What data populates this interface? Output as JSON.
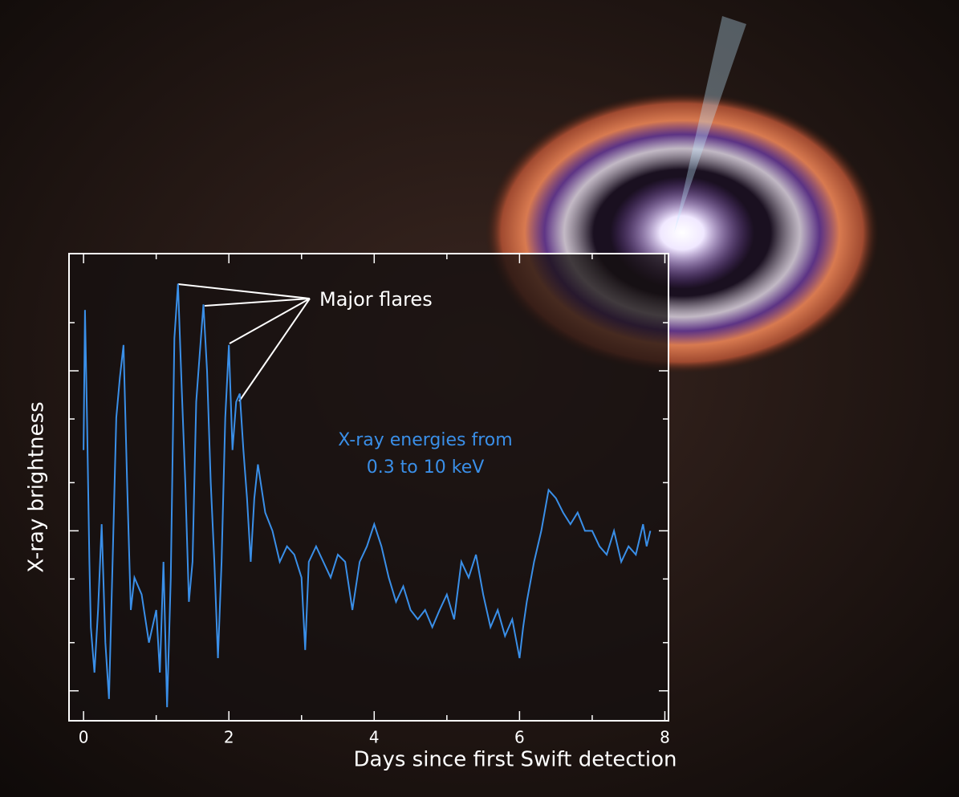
{
  "chart_data": {
    "type": "line",
    "xlabel": "Days since first Swift detection",
    "ylabel": "X-ray brightness",
    "annotations": [
      {
        "text": "Major flares"
      },
      {
        "text": [
          "X-ray energies from",
          "0.3 to 10 keV"
        ],
        "color": "#3a8fe8"
      }
    ],
    "x": [
      0,
      0.02,
      0.05,
      0.08,
      0.1,
      0.15,
      0.2,
      0.25,
      0.3,
      0.35,
      0.4,
      0.45,
      0.5,
      0.55,
      0.6,
      0.65,
      0.7,
      0.8,
      0.9,
      1.0,
      1.05,
      1.1,
      1.15,
      1.2,
      1.25,
      1.3,
      1.35,
      1.4,
      1.45,
      1.5,
      1.55,
      1.6,
      1.65,
      1.7,
      1.75,
      1.8,
      1.85,
      1.9,
      1.95,
      2.0,
      2.05,
      2.1,
      2.15,
      2.2,
      2.25,
      2.3,
      2.35,
      2.4,
      2.5,
      2.6,
      2.7,
      2.8,
      2.9,
      3.0,
      3.05,
      3.1,
      3.2,
      3.3,
      3.4,
      3.5,
      3.6,
      3.7,
      3.8,
      3.9,
      4.0,
      4.1,
      4.2,
      4.3,
      4.4,
      4.5,
      4.6,
      4.7,
      4.8,
      4.9,
      5.0,
      5.1,
      5.2,
      5.3,
      5.4,
      5.5,
      5.6,
      5.7,
      5.8,
      5.9,
      6.0,
      6.05,
      6.1,
      6.2,
      6.3,
      6.4,
      6.5,
      6.6,
      6.7,
      6.8,
      6.9,
      7.0,
      7.1,
      7.2,
      7.3,
      7.4,
      7.5,
      7.6,
      7.7,
      7.75,
      7.8
    ],
    "series": [
      {
        "color": "#3a8fe8",
        "values": [
          32,
          240,
          45,
          6.4,
          2.5,
          1.3,
          3.2,
          11,
          2.0,
          0.89,
          6.4,
          51,
          91,
          145,
          20,
          3.2,
          5.1,
          4.0,
          2.0,
          3.2,
          1.3,
          6.4,
          0.79,
          5.1,
          160,
          350,
          81,
          20,
          3.6,
          6.4,
          64,
          130,
          260,
          100,
          20,
          6.4,
          1.6,
          6.4,
          51,
          145,
          32,
          64,
          72,
          32,
          16,
          6.4,
          16,
          26,
          13,
          10,
          6.4,
          8.0,
          7.1,
          5.1,
          1.8,
          6.4,
          8.0,
          6.4,
          5.1,
          7.1,
          6.4,
          3.2,
          6.4,
          8.0,
          11,
          8.0,
          5.1,
          3.6,
          4.5,
          3.2,
          2.8,
          3.2,
          2.5,
          3.2,
          4.0,
          2.8,
          6.4,
          5.1,
          7.1,
          4.0,
          2.5,
          3.2,
          2.2,
          2.8,
          1.6,
          2.5,
          3.6,
          6.4,
          10,
          18,
          16,
          13,
          11,
          13,
          10,
          10,
          8.0,
          7.1,
          10,
          6.4,
          8.0,
          7.1,
          11,
          8.0,
          10
        ]
      }
    ],
    "xlim": [
      -0.2,
      8.05
    ],
    "xticks": [
      0,
      2,
      4,
      6,
      8
    ],
    "xminorticks": [
      1,
      3,
      5,
      7
    ],
    "ylim": [
      0.65,
      540
    ],
    "ylog": true,
    "yticks": [
      1,
      2,
      5,
      10,
      20,
      50,
      100,
      200
    ]
  }
}
